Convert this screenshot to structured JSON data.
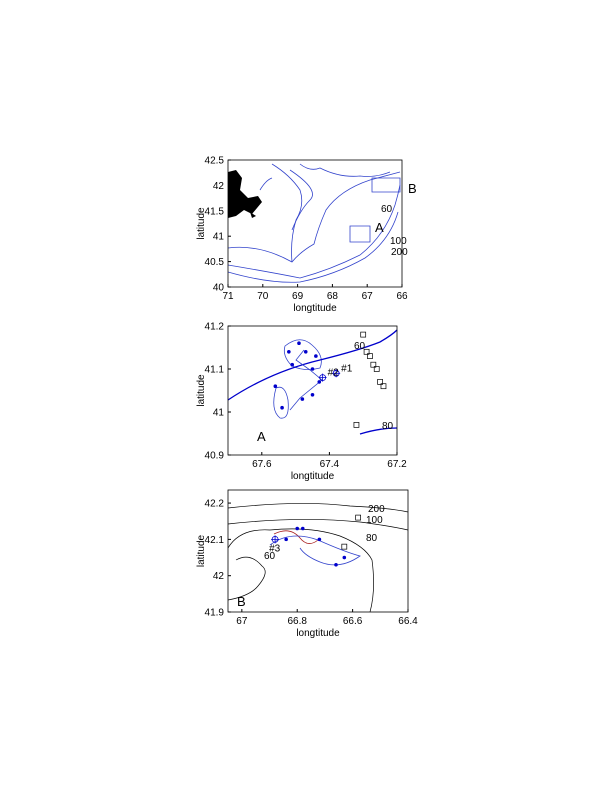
{
  "chart_data": [
    {
      "type": "map",
      "xlabel": "longtitude",
      "ylabel": "latitude",
      "xlim": [
        71,
        66
      ],
      "ylim": [
        40,
        42.5
      ],
      "xticks": [
        71,
        70,
        69,
        68,
        67,
        66
      ],
      "yticks": [
        40,
        40.5,
        41,
        41.5,
        42,
        42.5
      ],
      "annotations": [
        "A",
        "B",
        "60",
        "100",
        "200"
      ]
    },
    {
      "type": "map",
      "xlabel": "longtitude",
      "ylabel": "latitude",
      "xlim": [
        67.7,
        67.2
      ],
      "ylim": [
        40.9,
        41.2
      ],
      "xticks": [
        67.6,
        67.4,
        67.2
      ],
      "yticks": [
        40.9,
        41,
        41.1,
        41.2
      ],
      "annotations": [
        "60",
        "80",
        "A"
      ],
      "stations": {
        "color": "#0000cc",
        "x": [
          67.49,
          67.52,
          67.47,
          67.51,
          67.44,
          67.45,
          67.43,
          67.45,
          67.48,
          67.54,
          67.56
        ],
        "y": [
          41.16,
          41.14,
          41.14,
          41.11,
          41.13,
          41.1,
          41.07,
          41.04,
          41.03,
          41.01,
          41.06
        ]
      },
      "sites": {
        "color": "#0000cc",
        "labels": [
          "#1",
          "#2"
        ],
        "x": [
          67.38,
          67.42
        ],
        "y": [
          41.09,
          41.08
        ]
      },
      "squares": {
        "color": "#000000",
        "x": [
          67.3,
          67.29,
          67.28,
          67.27,
          67.26,
          67.25,
          67.24,
          67.32
        ],
        "y": [
          41.18,
          41.14,
          41.13,
          41.11,
          41.1,
          41.07,
          41.06,
          40.97
        ]
      }
    },
    {
      "type": "map",
      "xlabel": "longtitude",
      "ylabel": "latitude",
      "xlim": [
        67.05,
        66.4
      ],
      "ylim": [
        41.9,
        42.236
      ],
      "xticks": [
        67,
        66.8,
        66.6,
        66.4
      ],
      "yticks": [
        41.9,
        42,
        42.1,
        42.2
      ],
      "annotations": [
        "200",
        "100",
        "80",
        "60",
        "B"
      ],
      "stations": {
        "color": "#0000cc",
        "x": [
          66.84,
          66.8,
          66.78,
          66.72,
          66.66,
          66.63
        ],
        "y": [
          42.1,
          42.13,
          42.13,
          42.1,
          42.03,
          42.05
        ]
      },
      "sites": {
        "color": "#0000cc",
        "labels": [
          "#3"
        ],
        "x": [
          66.88
        ],
        "y": [
          42.1
        ]
      },
      "squares": {
        "color": "#000000",
        "x": [
          66.58,
          66.63
        ],
        "y": [
          42.16,
          42.08
        ]
      }
    }
  ]
}
